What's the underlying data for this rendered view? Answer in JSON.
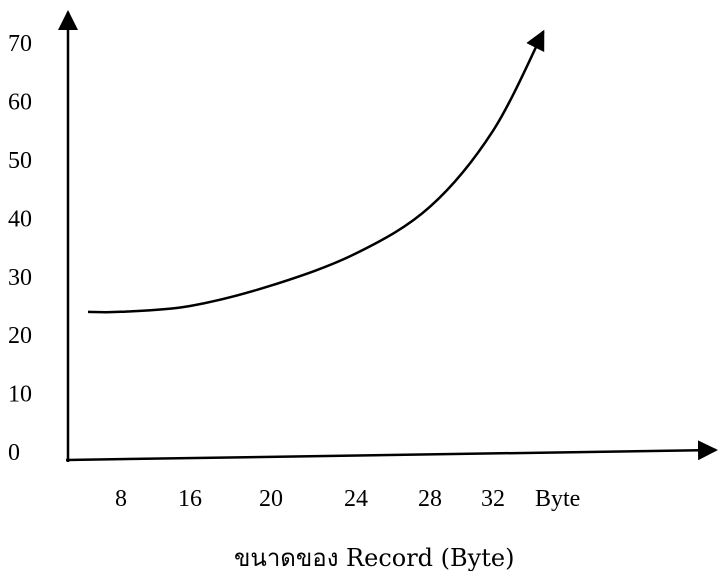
{
  "chart_data": {
    "type": "line",
    "title": "",
    "xlabel": "ขนาดของ Record (Byte)",
    "ylabel": "",
    "x_unit_label": "Byte",
    "x_ticks": [
      "8",
      "16",
      "20",
      "24",
      "28",
      "32"
    ],
    "y_ticks": [
      "0",
      "10",
      "20",
      "30",
      "40",
      "50",
      "60",
      "70"
    ],
    "ylim": [
      0,
      70
    ],
    "grid": false,
    "legend": "none",
    "series": [
      {
        "x_tick_index": [
          0,
          1,
          2,
          3,
          4,
          5,
          5.8
        ],
        "values": [
          24,
          25,
          28.5,
          34,
          42,
          55,
          72
        ]
      }
    ],
    "line_color": "#000000"
  }
}
